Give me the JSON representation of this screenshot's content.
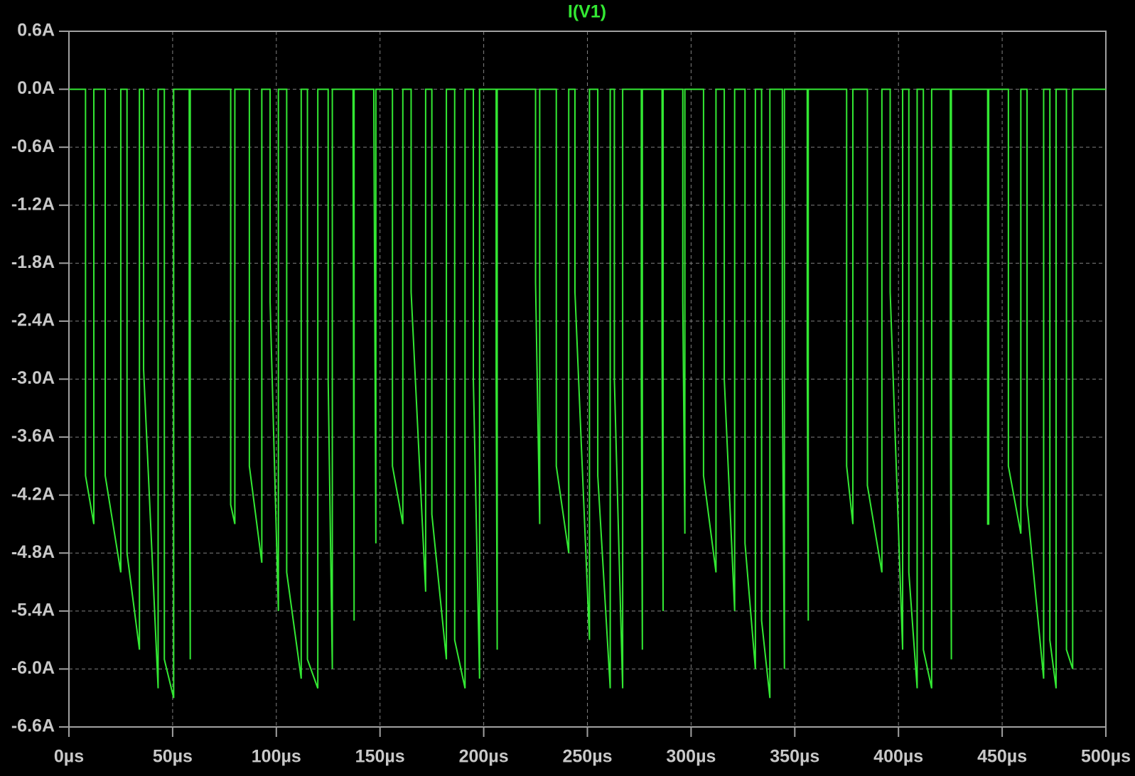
{
  "chart_data": {
    "type": "line",
    "series": [
      {
        "name": "I(V1)",
        "color": "#33e833",
        "x": [
          0,
          8,
          8,
          12,
          12,
          17.5,
          17.5,
          25,
          25,
          28,
          28,
          34,
          34,
          36,
          36,
          43,
          43,
          46,
          46,
          50.5,
          50.5,
          58,
          58,
          58.5,
          58.5,
          78,
          78,
          80,
          80,
          87,
          87,
          93,
          93,
          97,
          97,
          101,
          101,
          105,
          105,
          112,
          112,
          115,
          115,
          120,
          120,
          125,
          125,
          127,
          127,
          137,
          137,
          137.5,
          137.5,
          147,
          147,
          148,
          148,
          156,
          156,
          161,
          161,
          165,
          165,
          172,
          172,
          175,
          175,
          182,
          182,
          186,
          186,
          191,
          191,
          195,
          195,
          198,
          198,
          206,
          206,
          206.5,
          206.5,
          225,
          225,
          227,
          227,
          235,
          235,
          241,
          241,
          244,
          244,
          251,
          251,
          255,
          255,
          261,
          261,
          263,
          263,
          267,
          267,
          276,
          276,
          276.5,
          276.5,
          286,
          286,
          286.5,
          286.5,
          296,
          296,
          297,
          297,
          306,
          306,
          312,
          312,
          316,
          316,
          321,
          321,
          326,
          326,
          331,
          331,
          334,
          334,
          338,
          338,
          344,
          344,
          345,
          345,
          356,
          356,
          356.5,
          356.5,
          375,
          375,
          378,
          378,
          385,
          385,
          392,
          392,
          396,
          396,
          402,
          402,
          405,
          405,
          409,
          409,
          412,
          412,
          416,
          416,
          425,
          425,
          425.5,
          425.5,
          443,
          443,
          443.5,
          443.5,
          453,
          453,
          459,
          459,
          462,
          462,
          470,
          470,
          473,
          473,
          476,
          476,
          481,
          481,
          484,
          484,
          500
        ],
        "values": [
          0,
          0,
          -4.0,
          -4.5,
          0,
          0,
          -4.0,
          -5.0,
          0,
          0,
          -4.8,
          -5.8,
          0,
          0,
          -2.9,
          -6.2,
          0,
          0,
          -5.9,
          -6.3,
          0,
          0,
          -3.0,
          -5.9,
          0,
          0,
          -4.3,
          -4.5,
          0,
          0,
          -3.9,
          -4.9,
          0,
          0,
          -2.2,
          -5.4,
          0,
          0,
          -5.0,
          -6.1,
          0,
          0,
          -5.9,
          -6.2,
          0,
          0,
          -3.0,
          -6.0,
          0,
          0,
          -0.3,
          -5.5,
          0,
          0,
          -0.1,
          -4.7,
          0,
          0,
          -3.9,
          -4.5,
          0,
          0,
          -2.1,
          -5.2,
          0,
          0,
          -4.4,
          -5.9,
          0,
          0,
          -5.7,
          -6.2,
          0,
          0,
          -3.0,
          -6.1,
          0,
          0,
          -3.0,
          -5.8,
          0,
          0,
          -2.0,
          -4.5,
          0,
          0,
          -3.9,
          -4.8,
          0,
          0,
          -2.1,
          -5.7,
          0,
          0,
          -4.0,
          -6.2,
          0,
          0,
          -3.0,
          -6.2,
          0,
          0,
          -3.0,
          -5.8,
          0,
          0,
          -2.7,
          -5.4,
          0,
          0,
          -2.2,
          -4.6,
          0,
          0,
          -4.0,
          -5.0,
          0,
          0,
          -3.0,
          -5.4,
          0,
          0,
          -4.7,
          -6.0,
          0,
          0,
          -5.5,
          -6.3,
          0,
          0,
          -3.0,
          -6.0,
          0,
          0,
          -2.8,
          -5.5,
          0,
          0,
          -3.9,
          -4.5,
          0,
          0,
          -4.1,
          -5.0,
          0,
          0,
          -2.1,
          -5.8,
          0,
          0,
          -5.0,
          -6.2,
          0,
          0,
          -5.8,
          -6.2,
          0,
          0,
          -3.0,
          -5.9,
          0,
          0,
          -4.5,
          -4.5,
          0,
          0,
          -3.9,
          -4.6,
          0,
          0,
          -4.3,
          -6.1,
          0,
          0,
          -5.7,
          -6.2,
          0,
          0,
          -5.8,
          -6.0,
          0,
          0
        ]
      }
    ],
    "xlim": [
      0,
      500
    ],
    "xticks": [
      {
        "value": 0,
        "label": "0µs"
      },
      {
        "value": 50,
        "label": "50µs"
      },
      {
        "value": 100,
        "label": "100µs"
      },
      {
        "value": 150,
        "label": "150µs"
      },
      {
        "value": 200,
        "label": "200µs"
      },
      {
        "value": 250,
        "label": "250µs"
      },
      {
        "value": 300,
        "label": "300µs"
      },
      {
        "value": 350,
        "label": "350µs"
      },
      {
        "value": 400,
        "label": "400µs"
      },
      {
        "value": 450,
        "label": "450µs"
      },
      {
        "value": 500,
        "label": "500µs"
      }
    ],
    "ylim": [
      -6.6,
      0.6
    ],
    "yticks": [
      {
        "value": 0.6,
        "label": "0.6A"
      },
      {
        "value": 0,
        "label": "0.0A"
      },
      {
        "value": -0.6,
        "label": "-0.6A"
      },
      {
        "value": -1.2,
        "label": "-1.2A"
      },
      {
        "value": -1.8,
        "label": "-1.8A"
      },
      {
        "value": -2.4,
        "label": "-2.4A"
      },
      {
        "value": -3.0,
        "label": "-3.0A"
      },
      {
        "value": -3.6,
        "label": "-3.6A"
      },
      {
        "value": -4.2,
        "label": "-4.2A"
      },
      {
        "value": -4.8,
        "label": "-4.8A"
      },
      {
        "value": -5.4,
        "label": "-5.4A"
      },
      {
        "value": -6.0,
        "label": "-6.0A"
      },
      {
        "value": -6.6,
        "label": "-6.6A"
      }
    ],
    "grid": true
  }
}
